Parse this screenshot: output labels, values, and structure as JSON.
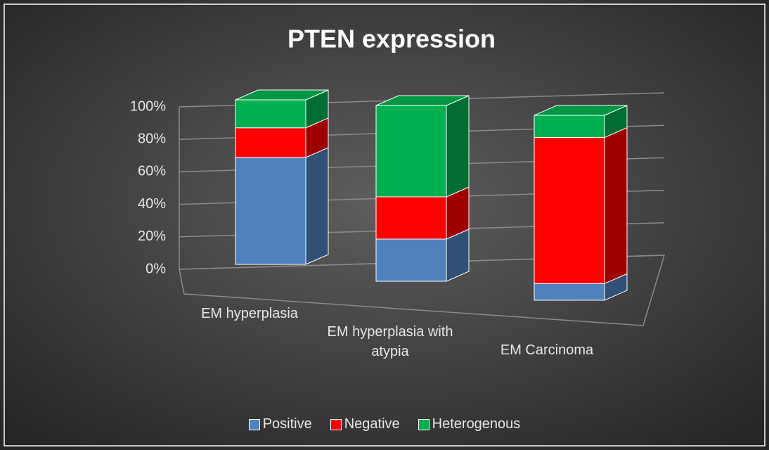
{
  "chart_data": {
    "type": "bar3d_stacked",
    "title": "PTEN expression",
    "categories": [
      "EM hyperplasia",
      "EM hyperplasia with atypia",
      "EM Carcinoma"
    ],
    "series": [
      {
        "name": "Positive",
        "color": "#4f81bd",
        "values": [
          65,
          24,
          9
        ]
      },
      {
        "name": "Negative",
        "color": "#ff0000",
        "values": [
          18,
          24,
          79
        ]
      },
      {
        "name": "Heterogenous",
        "color": "#00b050",
        "values": [
          17,
          52,
          12
        ]
      }
    ],
    "ylim": [
      0,
      100
    ],
    "yticks": [
      {
        "value": 0,
        "label": "0%"
      },
      {
        "value": 20,
        "label": "20%"
      },
      {
        "value": 40,
        "label": "40%"
      },
      {
        "value": 60,
        "label": "60%"
      },
      {
        "value": 80,
        "label": "80%"
      },
      {
        "value": 100,
        "label": "100%"
      }
    ],
    "grid": true,
    "legend": "bottom"
  }
}
